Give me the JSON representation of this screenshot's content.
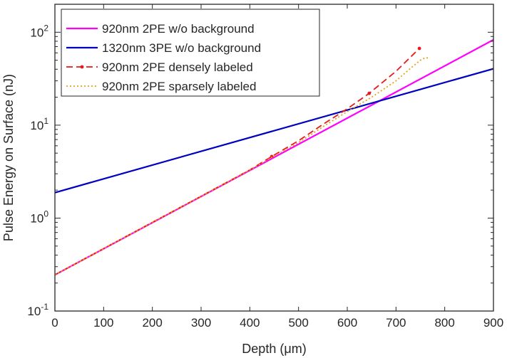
{
  "chart_data": {
    "type": "line",
    "title": "",
    "xlabel": "Depth (μm)",
    "ylabel": "Pulse Energy on Surface (nJ)",
    "xlim": [
      0,
      900
    ],
    "ylim": [
      0.1,
      200
    ],
    "yscale": "log",
    "grid": false,
    "legend_position": "top-left",
    "x_ticks": [
      "0",
      "100",
      "200",
      "300",
      "400",
      "500",
      "600",
      "700",
      "800",
      "900"
    ],
    "y_ticks": [
      {
        "value": 0.1,
        "base": "10",
        "exp": "-1"
      },
      {
        "value": 1,
        "base": "10",
        "exp": "0"
      },
      {
        "value": 10,
        "base": "10",
        "exp": "1"
      },
      {
        "value": 100,
        "base": "10",
        "exp": "2"
      }
    ],
    "series": [
      {
        "name": "920nm 2PE w/o background",
        "color": "#ff00ff",
        "style": "solid",
        "x": [
          0,
          900
        ],
        "y": [
          0.245,
          83
        ]
      },
      {
        "name": "1320nm 3PE w/o background",
        "color": "#0000c0",
        "style": "solid",
        "x": [
          0,
          900
        ],
        "y": [
          1.88,
          40.5
        ]
      },
      {
        "name": "920nm 2PE densely labeled",
        "color": "#e8191d",
        "style": "dashed",
        "marker": "dot",
        "x": [
          0,
          100,
          200,
          300,
          400,
          445,
          500,
          550,
          600,
          645,
          700,
          748
        ],
        "y": [
          0.245,
          0.47,
          0.9,
          1.72,
          3.3,
          4.6,
          6.8,
          10.2,
          15.0,
          22.0,
          38.0,
          67.0
        ],
        "marker_x": [
          445,
          645,
          748
        ],
        "marker_y": [
          4.6,
          22.0,
          67.0
        ]
      },
      {
        "name": "920nm 2PE sparsely labeled",
        "color": "#e3a21a",
        "style": "dotted",
        "x": [
          0,
          100,
          200,
          300,
          400,
          445,
          500,
          550,
          600,
          650,
          700,
          730,
          750,
          760,
          770
        ],
        "y": [
          0.245,
          0.47,
          0.9,
          1.72,
          3.3,
          4.5,
          6.5,
          9.6,
          14.0,
          20.0,
          30.0,
          41.0,
          50.0,
          53.0,
          53.0
        ]
      }
    ]
  }
}
